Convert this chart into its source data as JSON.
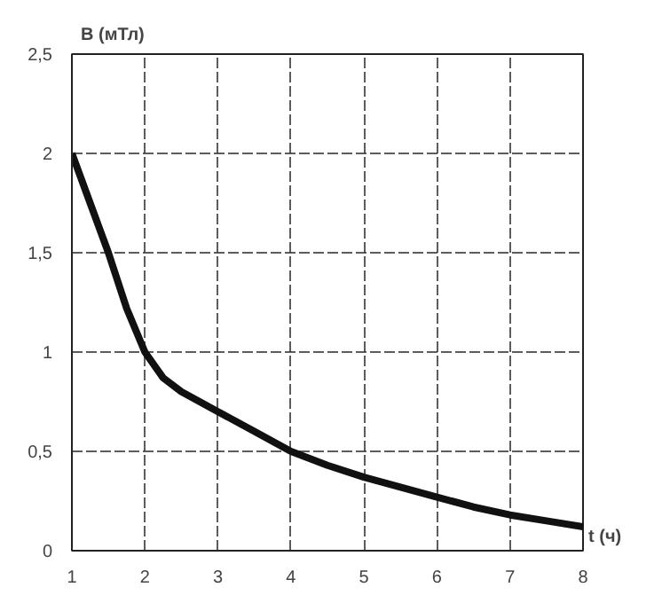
{
  "chart_data": {
    "type": "line",
    "ylabel": "B (мТл)",
    "xlabel": "t (ч)",
    "x": [
      1,
      1.25,
      1.5,
      1.75,
      2,
      2.25,
      2.5,
      3,
      3.5,
      4,
      4.5,
      5,
      5.5,
      6,
      6.5,
      7,
      7.5,
      8
    ],
    "series": [
      {
        "color": "#111111",
        "values": [
          2,
          1.75,
          1.5,
          1.22,
          1.0,
          0.87,
          0.8,
          0.7,
          0.6,
          0.5,
          0.43,
          0.37,
          0.32,
          0.27,
          0.22,
          0.18,
          0.15,
          0.12
        ]
      }
    ],
    "xlim": [
      1,
      8
    ],
    "xticks": [
      1,
      2,
      3,
      4,
      5,
      6,
      7,
      8
    ],
    "ylim": [
      0,
      2.5
    ],
    "yticks": [
      0,
      {
        "value": 0.5,
        "label": "0,5"
      },
      1,
      {
        "value": 1.5,
        "label": "1,5"
      },
      2,
      {
        "value": 2.5,
        "label": "2,5"
      }
    ],
    "grid": true,
    "marker": "none",
    "line_style": "solid"
  }
}
